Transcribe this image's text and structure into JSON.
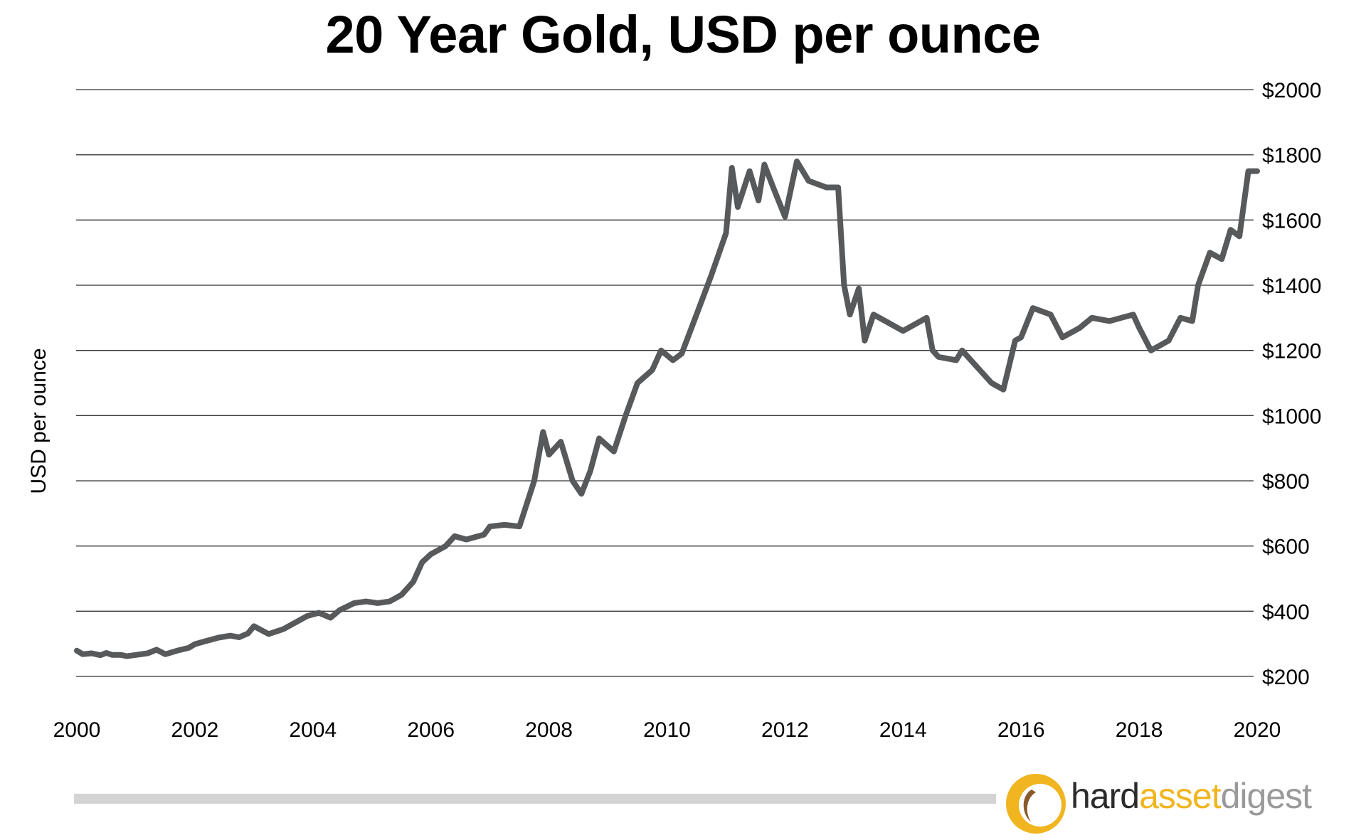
{
  "chart_data": {
    "type": "line",
    "title": "20 Year Gold, USD per ounce",
    "ylabel": "USD per ounce",
    "xlabel": "",
    "xlim": [
      2000,
      2020
    ],
    "ylim": [
      200,
      2000
    ],
    "x_ticks": [
      2000,
      2002,
      2004,
      2006,
      2008,
      2010,
      2012,
      2014,
      2016,
      2018,
      2020
    ],
    "x_tick_labels": [
      "2000",
      "2002",
      "2004",
      "2006",
      "2008",
      "2010",
      "2012",
      "2014",
      "2016",
      "2018",
      "2020"
    ],
    "y_ticks": [
      200,
      400,
      600,
      800,
      1000,
      1200,
      1400,
      1600,
      1800,
      2000
    ],
    "y_tick_labels": [
      "$200",
      "$400",
      "$600",
      "$800",
      "$1000",
      "$1200",
      "$1400",
      "$1600",
      "$1800",
      "$2000"
    ],
    "grid": "horizontal",
    "y_axis_side": "right",
    "line_color": "#57595b",
    "series": [
      {
        "x": [
          2000.0,
          2000.1,
          2000.25,
          2000.4,
          2000.5,
          2000.6,
          2000.75,
          2000.85,
          2001.0,
          2001.2,
          2001.35,
          2001.5,
          2001.7,
          2001.9,
          2002.0,
          2002.2,
          2002.4,
          2002.6,
          2002.75,
          2002.9,
          2003.0,
          2003.25,
          2003.5,
          2003.7,
          2003.9,
          2004.1,
          2004.3,
          2004.45,
          2004.7,
          2004.9,
          2005.1,
          2005.3,
          2005.5,
          2005.7,
          2005.85,
          2006.0,
          2006.25,
          2006.4,
          2006.6,
          2006.9,
          2007.0,
          2007.25,
          2007.5,
          2007.75,
          2007.9,
          2008.0,
          2008.2,
          2008.4,
          2008.55,
          2008.7,
          2008.85,
          2009.1,
          2009.3,
          2009.5,
          2009.75,
          2009.9,
          2010.1,
          2010.25,
          2010.5,
          2010.75,
          2011.0,
          2011.1,
          2011.2,
          2011.4,
          2011.55,
          2011.65,
          2011.8,
          2012.0,
          2012.2,
          2012.4,
          2012.7,
          2012.9,
          2013.0,
          2013.1,
          2013.25,
          2013.35,
          2013.5,
          2013.6,
          2013.8,
          2014.0,
          2014.2,
          2014.4,
          2014.5,
          2014.6,
          2014.9,
          2015.0,
          2015.2,
          2015.5,
          2015.7,
          2015.9,
          2016.0,
          2016.2,
          2016.5,
          2016.7,
          2016.9,
          2017.0,
          2017.2,
          2017.5,
          2017.7,
          2017.9,
          2018.0,
          2018.2,
          2018.5,
          2018.7,
          2018.9,
          2019.0,
          2019.2,
          2019.4,
          2019.55,
          2019.7,
          2019.85,
          2020.0
        ],
        "y": [
          279,
          268,
          271,
          265,
          272,
          266,
          266,
          262,
          266,
          271,
          282,
          268,
          279,
          288,
          299,
          309,
          319,
          325,
          320,
          332,
          354,
          330,
          345,
          365,
          385,
          395,
          380,
          403,
          425,
          430,
          425,
          430,
          450,
          490,
          550,
          575,
          600,
          630,
          620,
          635,
          660,
          665,
          660,
          800,
          950,
          880,
          920,
          800,
          760,
          830,
          930,
          890,
          1000,
          1100,
          1140,
          1200,
          1170,
          1190,
          1310,
          1430,
          1560,
          1760,
          1640,
          1750,
          1660,
          1770,
          1700,
          1610,
          1780,
          1720,
          1700,
          1700,
          1400,
          1310,
          1390,
          1230,
          1310,
          1300,
          1280,
          1260,
          1280,
          1300,
          1200,
          1180,
          1170,
          1200,
          1160,
          1100,
          1080,
          1230,
          1240,
          1330,
          1310,
          1240,
          1260,
          1270,
          1300,
          1290,
          1300,
          1310,
          1270,
          1200,
          1230,
          1300,
          1290,
          1400,
          1500,
          1480,
          1570,
          1550,
          1750,
          1750
        ]
      }
    ]
  },
  "brand": {
    "part1": "hard",
    "part2": "asset",
    "part3": "digest",
    "color_dark": "#2b2b2b",
    "color_accent": "#f0b51f",
    "color_gray": "#9a9a9a"
  }
}
